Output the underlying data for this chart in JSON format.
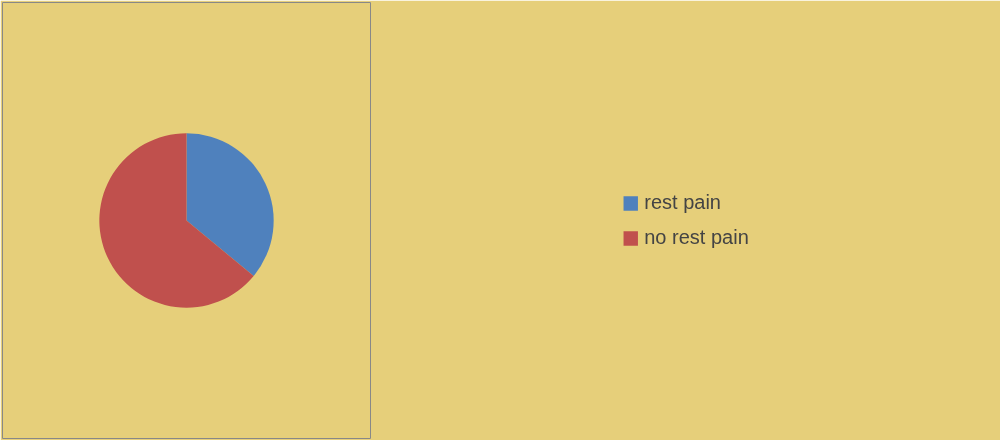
{
  "chart_data": {
    "type": "pie",
    "categories": [
      "rest pain",
      "no rest pain"
    ],
    "values": [
      36,
      64
    ],
    "colors": [
      "#4f81bd",
      "#c0504d"
    ],
    "legend": "right"
  }
}
